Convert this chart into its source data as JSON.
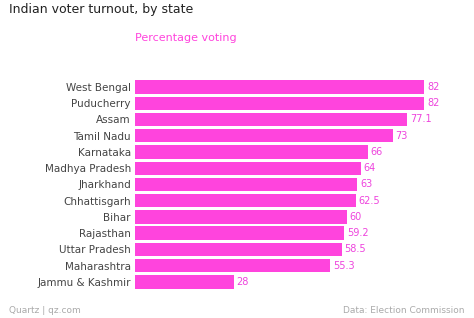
{
  "title": "Indian voter turnout, by state",
  "subtitle": "Percentage voting",
  "states": [
    "West Bengal",
    "Puducherry",
    "Assam",
    "Tamil Nadu",
    "Karnataka",
    "Madhya Pradesh",
    "Jharkhand",
    "Chhattisgarh",
    "Bihar",
    "Rajasthan",
    "Uttar Pradesh",
    "Maharashtra",
    "Jammu & Kashmir"
  ],
  "values": [
    82,
    82,
    77.1,
    73,
    66,
    64,
    63,
    62.5,
    60,
    59.2,
    58.5,
    55.3,
    28
  ],
  "bar_color": "#ff44dd",
  "label_color": "#ee44dd",
  "title_color": "#222222",
  "subtitle_color": "#ff44dd",
  "tick_color": "#444444",
  "footer_color": "#aaaaaa",
  "bg_color": "#ffffff",
  "footer_left": "Quartz | qz.com",
  "footer_right": "Data: Election Commission",
  "xlim": [
    0,
    90
  ],
  "bar_height": 0.82
}
